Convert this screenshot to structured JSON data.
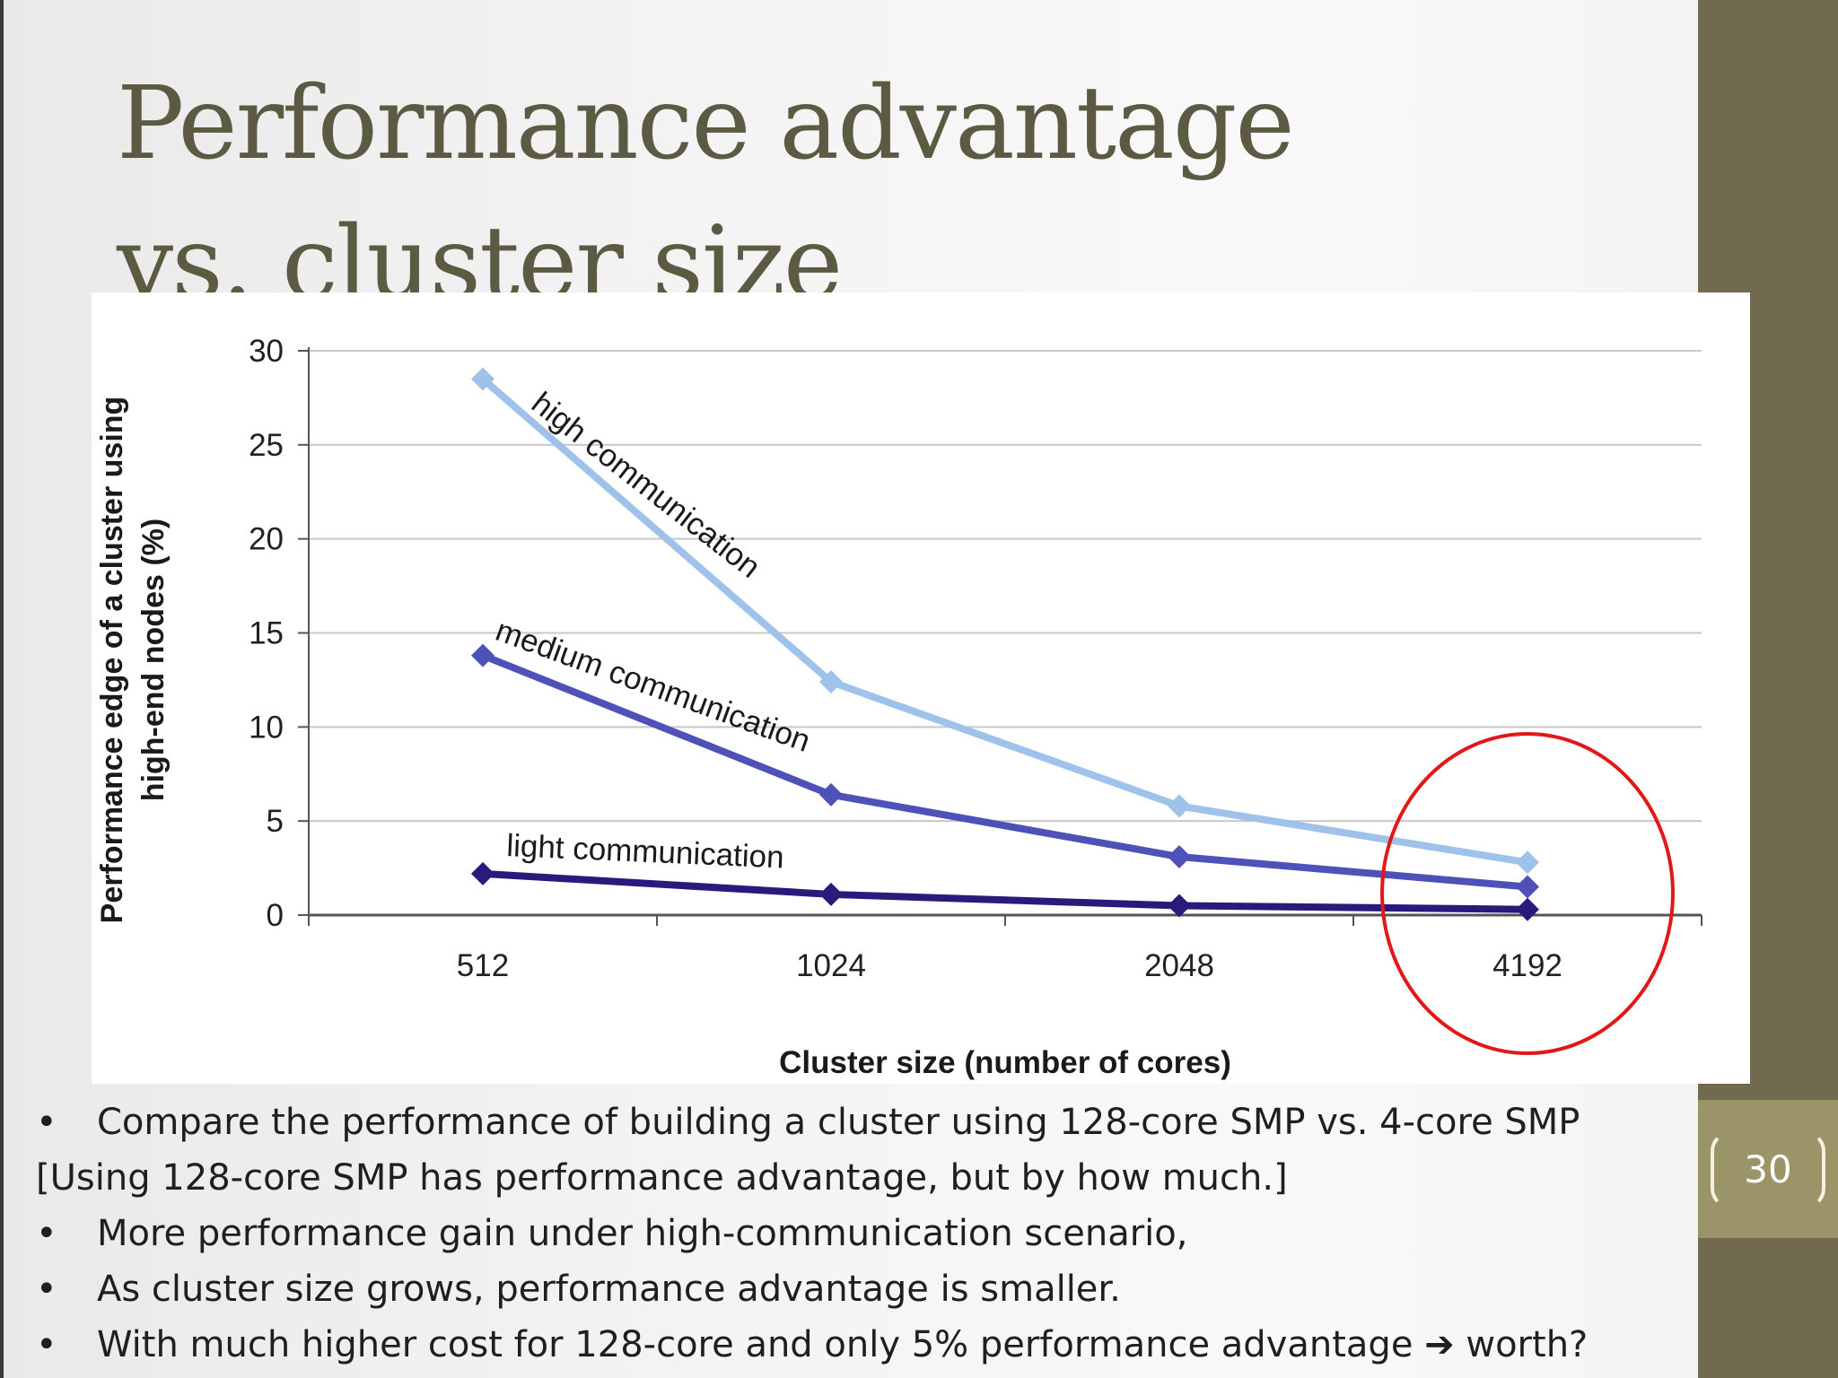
{
  "slide": {
    "title": "Performance advantage vs. cluster size",
    "page_number": "30",
    "bullets": [
      {
        "type": "bullet",
        "text": "Compare the performance of building a cluster using 128-core SMP vs. 4-core SMP"
      },
      {
        "type": "plain",
        "text": "[Using 128-core SMP has performance advantage, but by how much.]"
      },
      {
        "type": "bullet",
        "text": "More performance gain under high-communication scenario,"
      },
      {
        "type": "bullet",
        "text": "As cluster size grows, performance advantage is smaller."
      },
      {
        "type": "bullet",
        "text": "With much higher cost for 128-core and only 5% performance advantage ➔ worth?"
      }
    ],
    "bullet_glyph": "•"
  },
  "chart_data": {
    "type": "line",
    "categories": [
      "512",
      "1024",
      "2048",
      "4192"
    ],
    "series": [
      {
        "name": "high communication",
        "values": [
          28.5,
          12.4,
          5.8,
          2.8
        ],
        "color": "#9ec2ea"
      },
      {
        "name": "medium communication",
        "values": [
          13.8,
          6.4,
          3.1,
          1.5
        ],
        "color": "#4e51b8"
      },
      {
        "name": "light communication",
        "values": [
          2.2,
          1.1,
          0.5,
          0.3
        ],
        "color": "#2b1a7c"
      }
    ],
    "xlabel": "Cluster size (number of cores)",
    "ylabel": "Performance edge of a cluster using high-end nodes (%)",
    "ylim": [
      0,
      30
    ],
    "yticks": [
      "0",
      "5",
      "10",
      "15",
      "20",
      "25",
      "30"
    ],
    "grid": true,
    "highlight": {
      "category": "4192",
      "color": "#e01818"
    }
  }
}
